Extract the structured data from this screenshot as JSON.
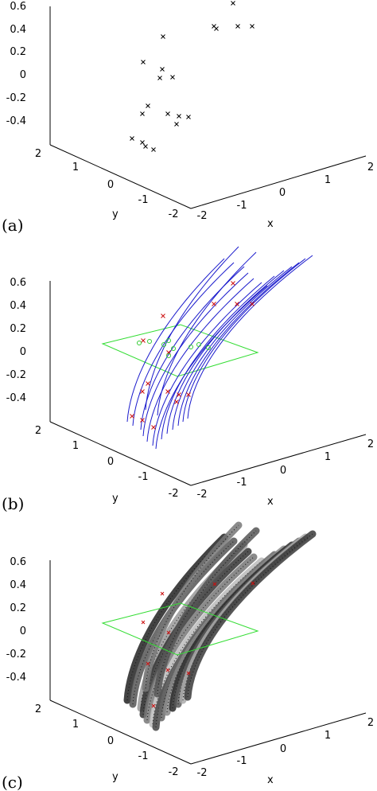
{
  "chart_data": [
    {
      "type": "scatter",
      "panel_label": "(a)",
      "xlabel": "x",
      "ylabel": "y",
      "z_ticks": [
        "0.6",
        "0.4",
        "0.2",
        "0",
        "-0.2",
        "-0.4"
      ],
      "x_ticks": [
        "-2",
        "-1",
        "0",
        "1",
        "2"
      ],
      "y_ticks": [
        "2",
        "1",
        "0",
        "-1",
        "-2"
      ],
      "xlim": [
        -2,
        2
      ],
      "ylim": [
        -2,
        2
      ],
      "zlim": [
        -0.6,
        0.6
      ],
      "points_color": "#000000",
      "marker": "x"
    },
    {
      "type": "line",
      "panel_label": "(b)",
      "xlabel": "x",
      "ylabel": "y",
      "z_ticks": [
        "0.6",
        "0.4",
        "0.2",
        "0",
        "-0.2",
        "-0.4"
      ],
      "x_ticks": [
        "-2",
        "-1",
        "0",
        "1",
        "2"
      ],
      "y_ticks": [
        "2",
        "1",
        "0",
        "-1",
        "-2"
      ],
      "xlim": [
        -2,
        2
      ],
      "ylim": [
        -2,
        2
      ],
      "zlim": [
        -0.6,
        0.6
      ],
      "curve_color": "#1a1acc",
      "plane_color": "#33dd33",
      "marker_color": "#cc1111",
      "crossing_color": "#33cc33"
    },
    {
      "type": "scatter",
      "panel_label": "(c)",
      "xlabel": "x",
      "ylabel": "y",
      "z_ticks": [
        "0.6",
        "0.4",
        "0.2",
        "0",
        "-0.2",
        "-0.4"
      ],
      "x_ticks": [
        "-2",
        "-1",
        "0",
        "1",
        "2"
      ],
      "y_ticks": [
        "2",
        "1",
        "0",
        "-1",
        "-2"
      ],
      "xlim": [
        -2,
        2
      ],
      "ylim": [
        -2,
        2
      ],
      "zlim": [
        -0.6,
        0.6
      ],
      "band_color": "#444444",
      "plane_color": "#33dd33",
      "marker_color": "#cc1111"
    }
  ]
}
